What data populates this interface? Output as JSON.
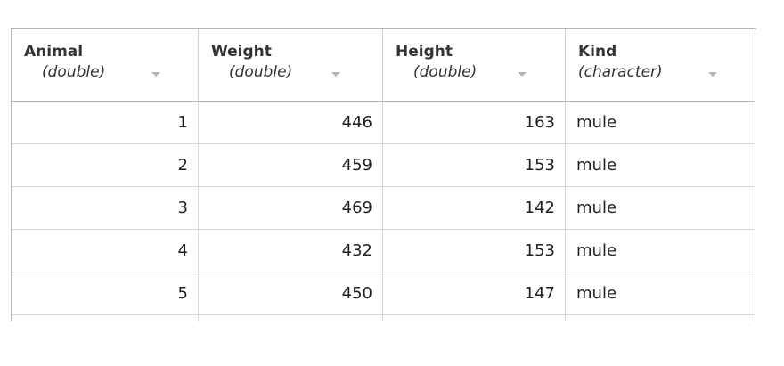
{
  "table": {
    "columns": [
      {
        "name": "Animal",
        "type": "(double)"
      },
      {
        "name": "Weight",
        "type": "(double)"
      },
      {
        "name": "Height",
        "type": "(double)"
      },
      {
        "name": "Kind",
        "type": "(character)"
      }
    ],
    "rows": [
      {
        "animal": "1",
        "weight": "446",
        "height": "163",
        "kind": "mule"
      },
      {
        "animal": "2",
        "weight": "459",
        "height": "153",
        "kind": "mule"
      },
      {
        "animal": "3",
        "weight": "469",
        "height": "142",
        "kind": "mule"
      },
      {
        "animal": "4",
        "weight": "432",
        "height": "153",
        "kind": "mule"
      },
      {
        "animal": "5",
        "weight": "450",
        "height": "147",
        "kind": "mule"
      }
    ]
  }
}
